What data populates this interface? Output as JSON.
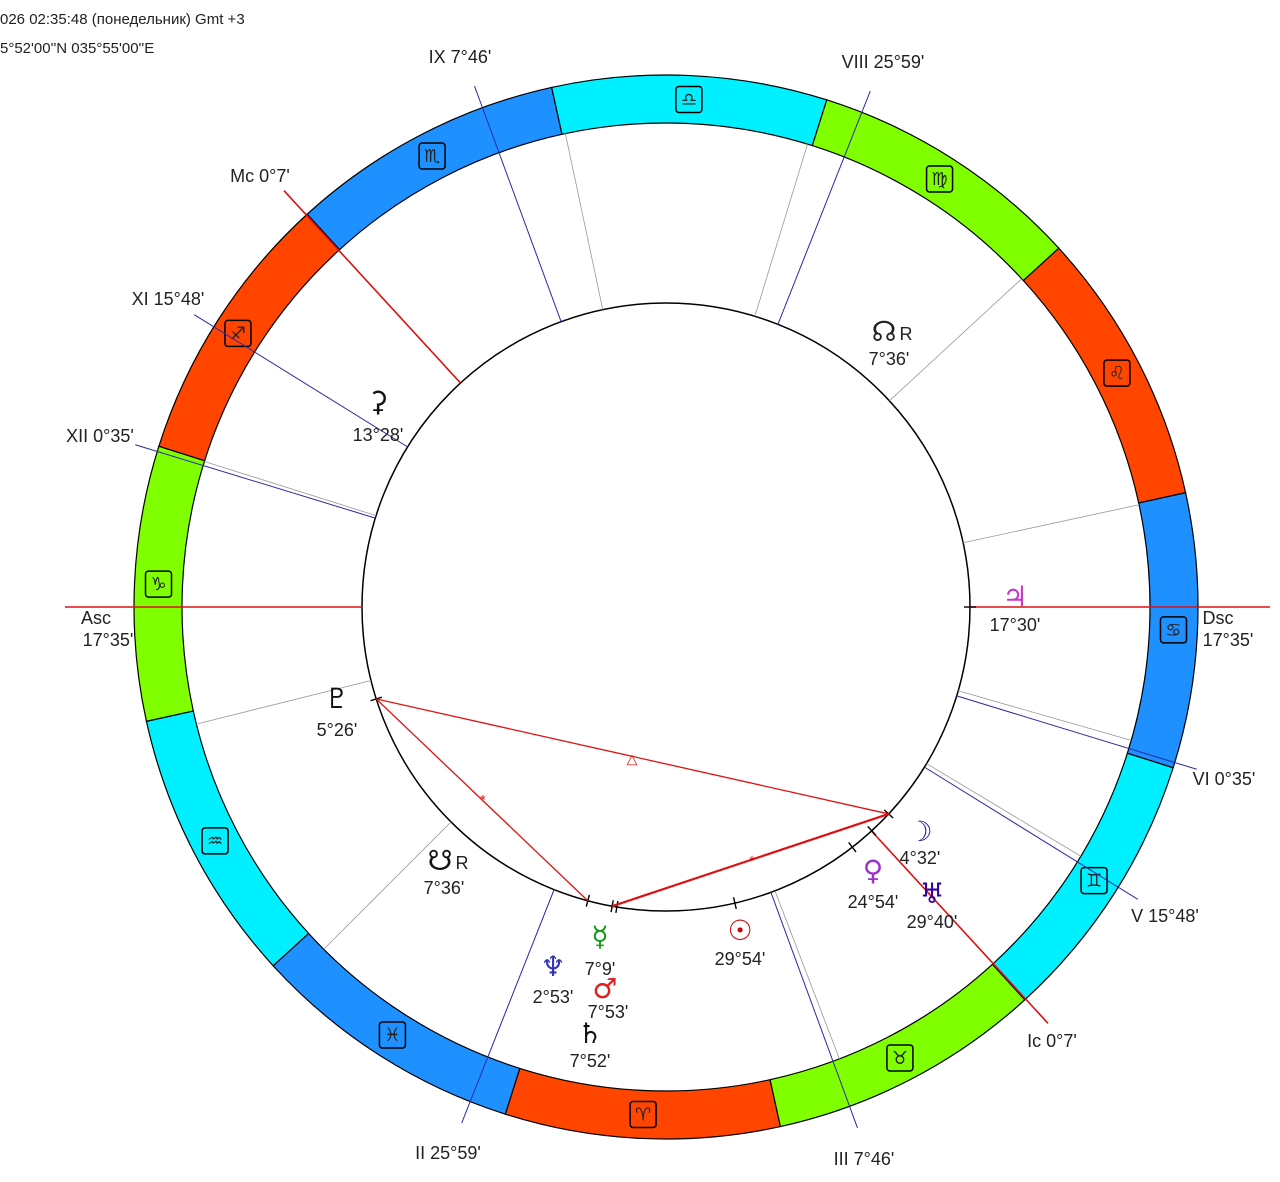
{
  "header": {
    "line1": "026 02:35:48 (понедельник) Gmt +3",
    "line2": "5°52'00''N 035°55'00''E"
  },
  "asc": {
    "name": "Asc",
    "degree": "17°35'"
  },
  "dsc": {
    "name": "Dsc",
    "degree": "17°35'"
  },
  "cusps": [
    "Mc 0°7'",
    "XI 15°48'",
    "XII 0°35'",
    "II 25°59'",
    "III 7°46'",
    "Ic 0°7'",
    "V 15°48'",
    "VI 0°35'",
    "VIII 25°59'",
    "IX 7°46'"
  ],
  "signs": [
    "♈",
    "♉",
    "♊",
    "♋",
    "♌",
    "♍",
    "♎",
    "♏",
    "♐",
    "♑",
    "♒",
    "♓"
  ],
  "planets": [
    {
      "glyph": "☊",
      "retro": "R",
      "degree": "7°36'"
    },
    {
      "glyph": "⚳",
      "degree": "13°28'"
    },
    {
      "glyph": "♃",
      "degree": "17°30'"
    },
    {
      "glyph": "♇",
      "degree": "5°26'"
    },
    {
      "glyph": "☋",
      "retro": "R",
      "degree": "7°36'"
    },
    {
      "glyph": "☽",
      "degree": "4°32'"
    },
    {
      "glyph": "♀",
      "degree": "24°54'"
    },
    {
      "glyph": "♅",
      "degree": "29°40'"
    },
    {
      "glyph": "☉",
      "degree": "29°54'"
    },
    {
      "glyph": "☿",
      "degree": "7°9'"
    },
    {
      "glyph": "♆",
      "degree": "2°53'"
    },
    {
      "glyph": "♂",
      "degree": "7°53'"
    },
    {
      "glyph": "♄",
      "degree": "7°52'"
    }
  ],
  "aspects": [
    {
      "symbol": "△"
    },
    {
      "symbol": "*"
    },
    {
      "symbol": "*"
    }
  ]
}
